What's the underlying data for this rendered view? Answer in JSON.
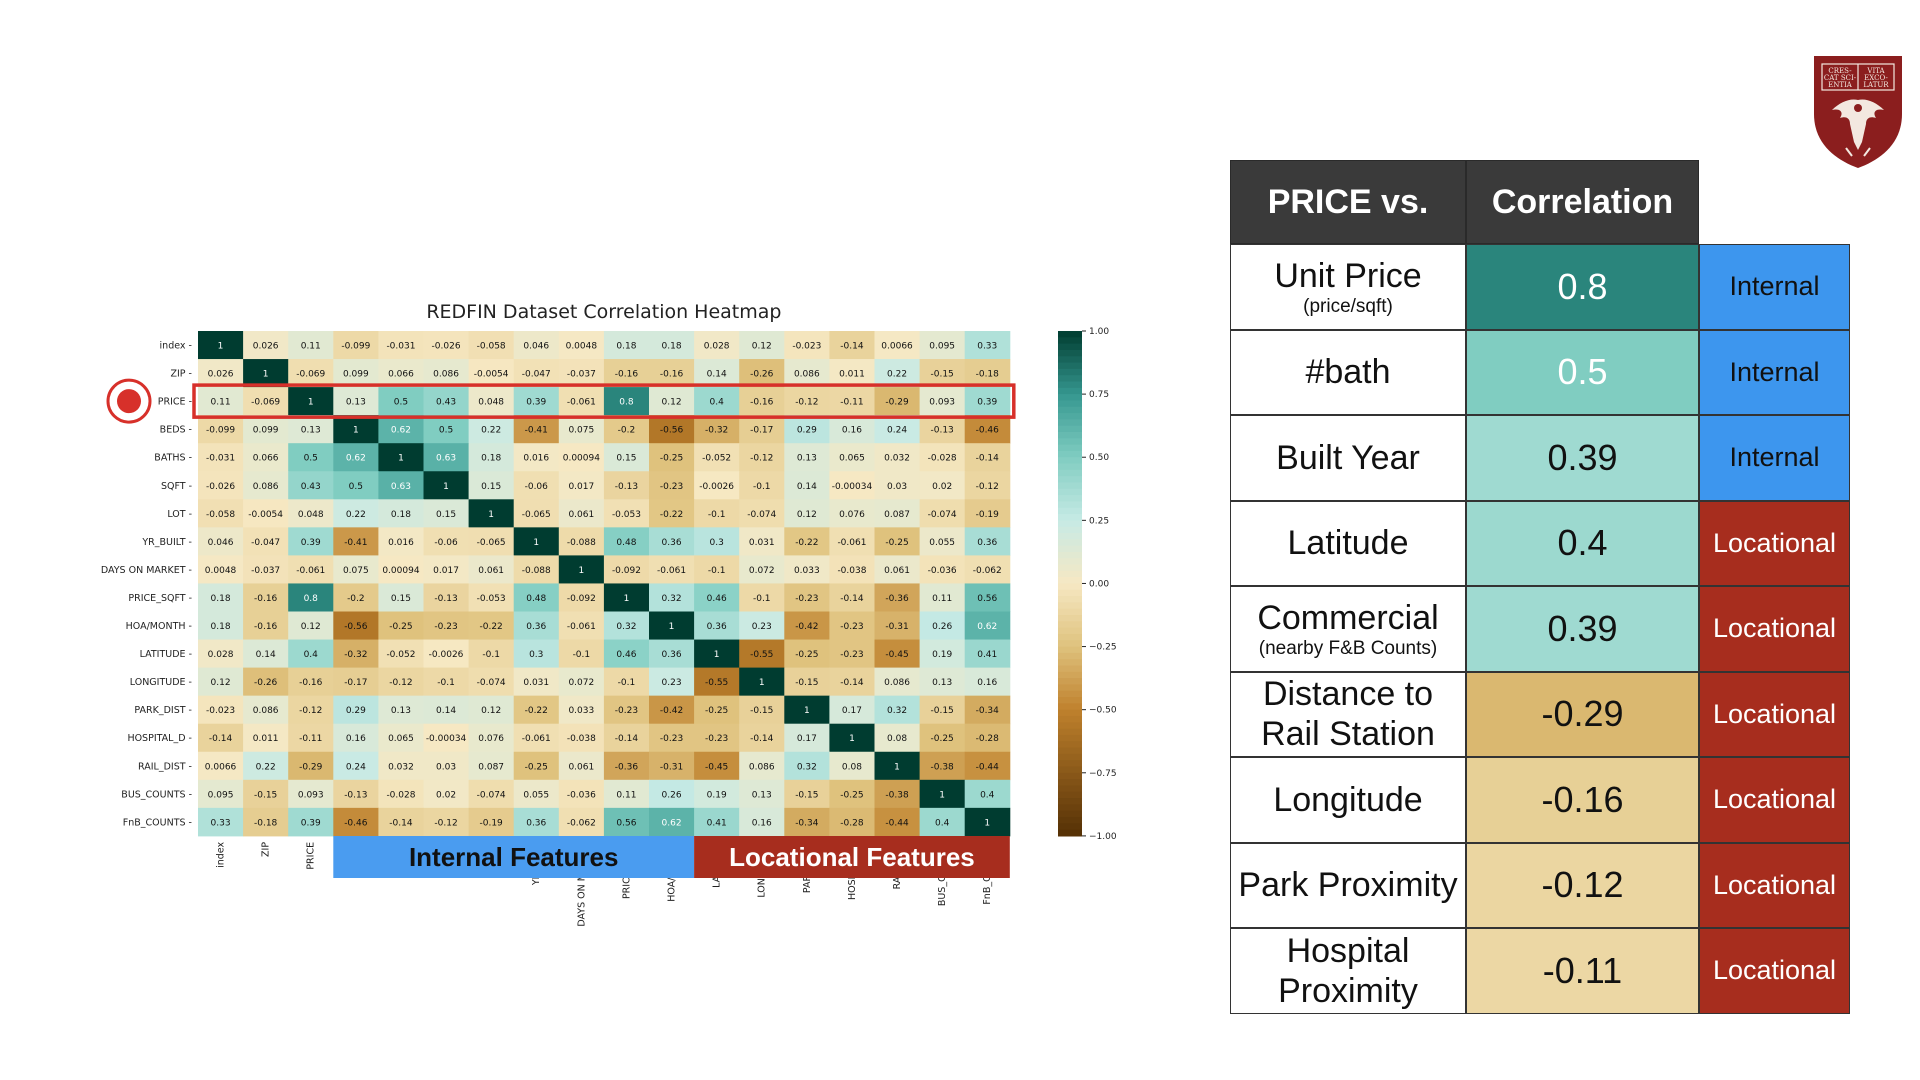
{
  "chart_data": {
    "type": "heatmap",
    "title": "REDFIN Dataset Correlation Heatmap",
    "labels": [
      "index",
      "ZIP",
      "PRICE",
      "BEDS",
      "BATHS",
      "SQFT",
      "LOT",
      "YR_BUILT",
      "DAYS ON MARKET",
      "PRICE_SQFT",
      "HOA/MONTH",
      "LATITUDE",
      "LONGITUDE",
      "PARK_DIST",
      "HOSPITAL_D",
      "RAIL_DIST",
      "BUS_COUNTS",
      "FnB_COUNTS"
    ],
    "values": [
      [
        "1",
        "0.026",
        "0.11",
        "-0.099",
        "-0.031",
        "-0.026",
        "-0.058",
        "0.046",
        "0.0048",
        "0.18",
        "0.18",
        "0.028",
        "0.12",
        "-0.023",
        "-0.14",
        "0.0066",
        "0.095",
        "0.33"
      ],
      [
        "0.026",
        "1",
        "-0.069",
        "0.099",
        "0.066",
        "0.086",
        "-0.0054",
        "-0.047",
        "-0.037",
        "-0.16",
        "-0.16",
        "0.14",
        "-0.26",
        "0.086",
        "0.011",
        "0.22",
        "-0.15",
        "-0.18"
      ],
      [
        "0.11",
        "-0.069",
        "1",
        "0.13",
        "0.5",
        "0.43",
        "0.048",
        "0.39",
        "-0.061",
        "0.8",
        "0.12",
        "0.4",
        "-0.16",
        "-0.12",
        "-0.11",
        "-0.29",
        "0.093",
        "0.39"
      ],
      [
        "-0.099",
        "0.099",
        "0.13",
        "1",
        "0.62",
        "0.5",
        "0.22",
        "-0.41",
        "0.075",
        "-0.2",
        "-0.56",
        "-0.32",
        "-0.17",
        "0.29",
        "0.16",
        "0.24",
        "-0.13",
        "-0.46"
      ],
      [
        "-0.031",
        "0.066",
        "0.5",
        "0.62",
        "1",
        "0.63",
        "0.18",
        "0.016",
        "0.00094",
        "0.15",
        "-0.25",
        "-0.052",
        "-0.12",
        "0.13",
        "0.065",
        "0.032",
        "-0.028",
        "-0.14"
      ],
      [
        "-0.026",
        "0.086",
        "0.43",
        "0.5",
        "0.63",
        "1",
        "0.15",
        "-0.06",
        "0.017",
        "-0.13",
        "-0.23",
        "-0.0026",
        "-0.1",
        "0.14",
        "-0.00034",
        "0.03",
        "0.02",
        "-0.12"
      ],
      [
        "-0.058",
        "-0.0054",
        "0.048",
        "0.22",
        "0.18",
        "0.15",
        "1",
        "-0.065",
        "0.061",
        "-0.053",
        "-0.22",
        "-0.1",
        "-0.074",
        "0.12",
        "0.076",
        "0.087",
        "-0.074",
        "-0.19"
      ],
      [
        "0.046",
        "-0.047",
        "0.39",
        "-0.41",
        "0.016",
        "-0.06",
        "-0.065",
        "1",
        "-0.088",
        "0.48",
        "0.36",
        "0.3",
        "0.031",
        "-0.22",
        "-0.061",
        "-0.25",
        "0.055",
        "0.36"
      ],
      [
        "0.0048",
        "-0.037",
        "-0.061",
        "0.075",
        "0.00094",
        "0.017",
        "0.061",
        "-0.088",
        "1",
        "-0.092",
        "-0.061",
        "-0.1",
        "0.072",
        "0.033",
        "-0.038",
        "0.061",
        "-0.036",
        "-0.062"
      ],
      [
        "0.18",
        "-0.16",
        "0.8",
        "-0.2",
        "0.15",
        "-0.13",
        "-0.053",
        "0.48",
        "-0.092",
        "1",
        "0.32",
        "0.46",
        "-0.1",
        "-0.23",
        "-0.14",
        "-0.36",
        "0.11",
        "0.56"
      ],
      [
        "0.18",
        "-0.16",
        "0.12",
        "-0.56",
        "-0.25",
        "-0.23",
        "-0.22",
        "0.36",
        "-0.061",
        "0.32",
        "1",
        "0.36",
        "0.23",
        "-0.42",
        "-0.23",
        "-0.31",
        "0.26",
        "0.62"
      ],
      [
        "0.028",
        "0.14",
        "0.4",
        "-0.32",
        "-0.052",
        "-0.0026",
        "-0.1",
        "0.3",
        "-0.1",
        "0.46",
        "0.36",
        "1",
        "-0.55",
        "-0.25",
        "-0.23",
        "-0.45",
        "0.19",
        "0.41"
      ],
      [
        "0.12",
        "-0.26",
        "-0.16",
        "-0.17",
        "-0.12",
        "-0.1",
        "-0.074",
        "0.031",
        "0.072",
        "-0.1",
        "0.23",
        "-0.55",
        "1",
        "-0.15",
        "-0.14",
        "0.086",
        "0.13",
        "0.16"
      ],
      [
        "-0.023",
        "0.086",
        "-0.12",
        "0.29",
        "0.13",
        "0.14",
        "0.12",
        "-0.22",
        "0.033",
        "-0.23",
        "-0.42",
        "-0.25",
        "-0.15",
        "1",
        "0.17",
        "0.32",
        "-0.15",
        "-0.34"
      ],
      [
        "-0.14",
        "0.011",
        "-0.11",
        "0.16",
        "0.065",
        "-0.00034",
        "0.076",
        "-0.061",
        "-0.038",
        "-0.14",
        "-0.23",
        "-0.23",
        "-0.14",
        "0.17",
        "1",
        "0.08",
        "-0.25",
        "-0.28"
      ],
      [
        "0.0066",
        "0.22",
        "-0.29",
        "0.24",
        "0.032",
        "0.03",
        "0.087",
        "-0.25",
        "0.061",
        "-0.36",
        "-0.31",
        "-0.45",
        "0.086",
        "0.32",
        "0.08",
        "1",
        "-0.38",
        "-0.44"
      ],
      [
        "0.095",
        "-0.15",
        "0.093",
        "-0.13",
        "-0.028",
        "0.02",
        "-0.074",
        "0.055",
        "-0.036",
        "0.11",
        "0.26",
        "0.19",
        "0.13",
        "-0.15",
        "-0.25",
        "-0.38",
        "1",
        "0.4"
      ],
      [
        "0.33",
        "-0.18",
        "0.39",
        "-0.46",
        "-0.14",
        "-0.12",
        "-0.19",
        "0.36",
        "-0.062",
        "0.56",
        "0.62",
        "0.41",
        "0.16",
        "-0.34",
        "-0.28",
        "-0.44",
        "0.4",
        "1"
      ]
    ],
    "colorbar_ticks": [
      "1.00",
      "0.75",
      "0.50",
      "0.25",
      "0.00",
      "−0.25",
      "−0.50",
      "−0.75",
      "−1.00"
    ],
    "vmin": -1,
    "vmax": 1,
    "highlighted_row": "PRICE",
    "groups": [
      {
        "label": "Internal Features",
        "start": 3,
        "end": 10,
        "color": "#4a9cf0",
        "bg": "#c7d9ea"
      },
      {
        "label": "Locational Features",
        "start": 11,
        "end": 17,
        "color": "#a72d1e",
        "bg": "#dcbdbd"
      }
    ]
  },
  "table": {
    "headers": [
      "PRICE vs.",
      "Correlation"
    ],
    "rows": [
      {
        "feature": "Unit Price",
        "sub": "(price/sqft)",
        "value": "0.8",
        "category": "Internal"
      },
      {
        "feature": "#bath",
        "sub": "",
        "value": "0.5",
        "category": "Internal"
      },
      {
        "feature": "Built Year",
        "sub": "",
        "value": "0.39",
        "category": "Internal"
      },
      {
        "feature": "Latitude",
        "sub": "",
        "value": "0.4",
        "category": "Locational"
      },
      {
        "feature": "Commercial",
        "sub": "(nearby F&B Counts)",
        "value": "0.39",
        "category": "Locational"
      },
      {
        "feature": "Distance to Rail Station",
        "sub": "",
        "value": "-0.29",
        "category": "Locational"
      },
      {
        "feature": "Longitude",
        "sub": "",
        "value": "-0.16",
        "category": "Locational"
      },
      {
        "feature": "Park Proximity",
        "sub": "",
        "value": "-0.12",
        "category": "Locational"
      },
      {
        "feature": "Hospital Proximity",
        "sub": "",
        "value": "-0.11",
        "category": "Locational"
      }
    ]
  },
  "colors": {
    "highlight": "#d7302a",
    "internal": "#3d96ee",
    "locational": "#a72d1e",
    "header": "#3a3a3a",
    "logo": "#8b1e1e"
  },
  "logo": {
    "icon": "university-crest-icon",
    "motto": [
      "CRES-",
      "CAT SCI-",
      "ENTIA",
      "VITA",
      "EXCO-",
      "LATUR"
    ]
  }
}
